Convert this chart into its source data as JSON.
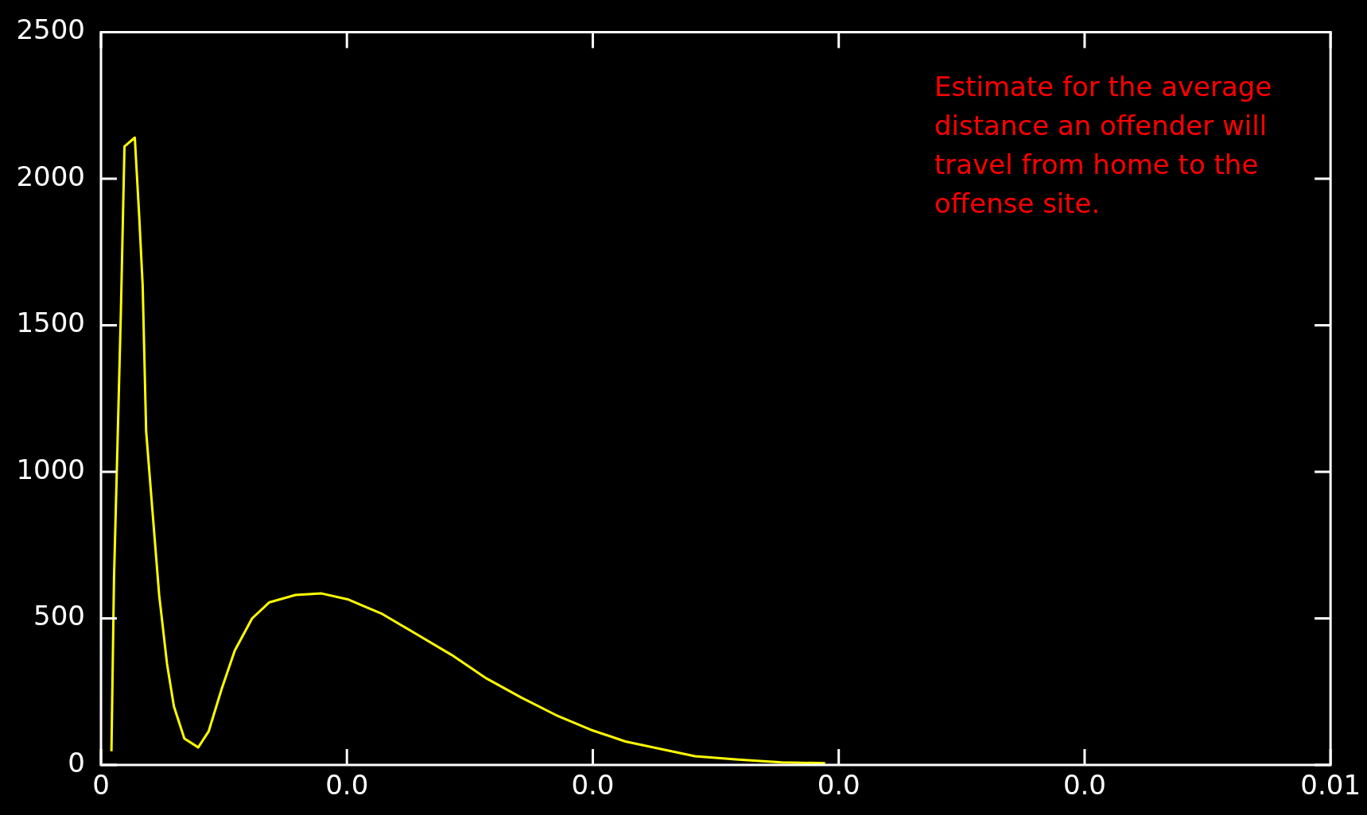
{
  "chart_data": {
    "type": "line",
    "x": [
      8.5e-05,
      0.000106,
      0.000134,
      0.000162,
      0.000191,
      0.000275,
      0.000311,
      0.000339,
      0.000367,
      0.000417,
      0.000473,
      0.000537,
      0.000593,
      0.000678,
      0.000791,
      0.000876,
      0.000982,
      0.001088,
      0.001229,
      0.00137,
      0.001582,
      0.001794,
      0.002006,
      0.002288,
      0.002571,
      0.002853,
      0.003136,
      0.003418,
      0.003701,
      0.003983,
      0.004266,
      0.004548,
      0.004831,
      0.005184,
      0.005537,
      0.00589
    ],
    "series": [
      {
        "color": "#ffff00",
        "values": [
          47,
          640,
          1090,
          1550,
          2110,
          2140,
          1870,
          1635,
          1140,
          875,
          580,
          345,
          200,
          90,
          60,
          115,
          260,
          390,
          500,
          555,
          580,
          585,
          565,
          515,
          445,
          375,
          295,
          230,
          170,
          120,
          80,
          55,
          30,
          18,
          9,
          6
        ]
      }
    ],
    "xlim": [
      0,
      0.01
    ],
    "xticks": [
      0,
      {
        "value": 0.002,
        "label": "0.0"
      },
      {
        "value": 0.004,
        "label": "0.0"
      },
      {
        "value": 0.006,
        "label": "0.0"
      },
      {
        "value": 0.008,
        "label": "0.0"
      },
      0.01
    ],
    "ylim": [
      0,
      2500
    ],
    "yticks": [
      0,
      500,
      1000,
      1500,
      2000,
      2500
    ],
    "grid": false,
    "legend": false,
    "marker": "none",
    "line_style": "solid",
    "annotations": [
      "Estimate for the average distance an offender will travel from home to the offense site."
    ]
  }
}
